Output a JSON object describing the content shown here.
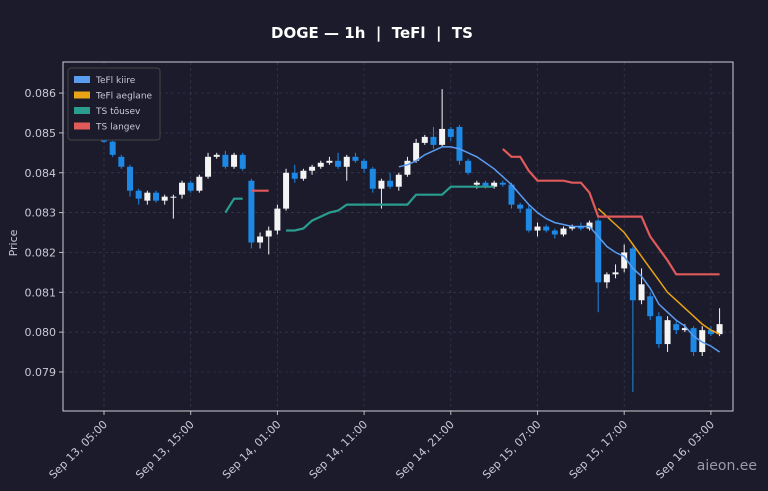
{
  "chart_data": {
    "type": "candlestick",
    "title": "DOGE — 1h  |  TeFl  |  TS",
    "y_label": "Price",
    "watermark": "aieon.ee",
    "categories": [
      "Sep 13, 05:00",
      null,
      null,
      null,
      null,
      null,
      null,
      null,
      null,
      null,
      "Sep 13, 15:00",
      null,
      null,
      null,
      null,
      null,
      null,
      null,
      null,
      null,
      "Sep 14, 01:00",
      null,
      null,
      null,
      null,
      null,
      null,
      null,
      null,
      null,
      "Sep 14, 11:00",
      null,
      null,
      null,
      null,
      null,
      null,
      null,
      null,
      null,
      "Sep 14, 21:00",
      null,
      null,
      null,
      null,
      null,
      null,
      null,
      null,
      null,
      "Sep 15, 07:00",
      null,
      null,
      null,
      null,
      null,
      null,
      null,
      null,
      null,
      "Sep 15, 17:00",
      null,
      null,
      null,
      null,
      null,
      null,
      null,
      null,
      null,
      "Sep 16, 03:00",
      null
    ],
    "open": [
      0.0849,
      0.08478,
      0.0844,
      0.08415,
      0.08355,
      0.0833,
      0.0835,
      0.0833,
      0.0834,
      0.08345,
      0.08375,
      0.08355,
      0.0839,
      0.0844,
      0.08445,
      0.08415,
      0.08445,
      0.0838,
      0.08225,
      0.0824,
      0.08255,
      0.0831,
      0.084,
      0.08385,
      0.08405,
      0.08415,
      0.08425,
      0.0843,
      0.08415,
      0.0844,
      0.0843,
      0.0841,
      0.0836,
      0.0838,
      0.08365,
      0.08395,
      0.0843,
      0.08475,
      0.0849,
      0.0847,
      0.0851,
      0.08515,
      0.0843,
      0.0837,
      0.08375,
      0.08365,
      0.08375,
      0.0837,
      0.0832,
      0.0831,
      0.08255,
      0.08265,
      0.08255,
      0.08245,
      0.0826,
      0.08265,
      0.0826,
      0.0828,
      0.08125,
      0.08145,
      0.0816,
      0.0821,
      0.0808,
      0.0809,
      0.0804,
      0.0797,
      0.0802,
      0.08005,
      0.0801,
      0.0795,
      0.08005,
      0.07995
    ],
    "high": [
      0.08495,
      0.0848,
      0.08445,
      0.0842,
      0.0836,
      0.08355,
      0.08355,
      0.08345,
      0.08345,
      0.0838,
      0.0838,
      0.08395,
      0.0845,
      0.0845,
      0.08455,
      0.0845,
      0.0845,
      0.08385,
      0.0825,
      0.08265,
      0.0832,
      0.0841,
      0.0842,
      0.0841,
      0.0842,
      0.0843,
      0.0844,
      0.0845,
      0.08445,
      0.0845,
      0.08435,
      0.08415,
      0.08385,
      0.084,
      0.084,
      0.0844,
      0.08485,
      0.08495,
      0.08515,
      0.0861,
      0.08515,
      0.0852,
      0.08435,
      0.0838,
      0.0838,
      0.0838,
      0.0838,
      0.08375,
      0.08325,
      0.0832,
      0.08275,
      0.0827,
      0.0826,
      0.08265,
      0.0827,
      0.08275,
      0.0828,
      0.08285,
      0.0815,
      0.0817,
      0.0822,
      0.08215,
      0.0816,
      0.081,
      0.0805,
      0.0804,
      0.0803,
      0.0802,
      0.08015,
      0.08015,
      0.08015,
      0.0806
    ],
    "low": [
      0.08475,
      0.0844,
      0.0841,
      0.0834,
      0.0832,
      0.0832,
      0.08325,
      0.0832,
      0.08285,
      0.08335,
      0.0835,
      0.0835,
      0.08385,
      0.08435,
      0.0841,
      0.0841,
      0.08405,
      0.0821,
      0.0821,
      0.08195,
      0.08245,
      0.08305,
      0.08375,
      0.0838,
      0.08395,
      0.0841,
      0.0842,
      0.0841,
      0.0838,
      0.08425,
      0.084,
      0.0835,
      0.0831,
      0.0836,
      0.08355,
      0.0839,
      0.08425,
      0.0847,
      0.0846,
      0.08465,
      0.0848,
      0.0842,
      0.08395,
      0.0836,
      0.0836,
      0.0836,
      0.08365,
      0.0831,
      0.083,
      0.0825,
      0.0824,
      0.0825,
      0.08235,
      0.0824,
      0.08255,
      0.08255,
      0.08255,
      0.0805,
      0.0811,
      0.08135,
      0.0815,
      0.0785,
      0.0807,
      0.0803,
      0.0796,
      0.0795,
      0.07995,
      0.08,
      0.0794,
      0.0794,
      0.0799,
      0.0799
    ],
    "close": [
      0.08478,
      0.08445,
      0.08415,
      0.08355,
      0.08335,
      0.0835,
      0.0833,
      0.0834,
      0.0834,
      0.08375,
      0.08355,
      0.0839,
      0.0844,
      0.08445,
      0.08415,
      0.08445,
      0.0841,
      0.08225,
      0.0824,
      0.08255,
      0.0831,
      0.084,
      0.08385,
      0.08405,
      0.08415,
      0.08425,
      0.0843,
      0.08415,
      0.0844,
      0.0843,
      0.0841,
      0.0836,
      0.0838,
      0.08365,
      0.08395,
      0.0843,
      0.08475,
      0.0849,
      0.0847,
      0.0851,
      0.0849,
      0.0843,
      0.084,
      0.08375,
      0.08365,
      0.08375,
      0.0837,
      0.0832,
      0.0831,
      0.08255,
      0.08265,
      0.08255,
      0.08245,
      0.0826,
      0.08265,
      0.0826,
      0.08275,
      0.08125,
      0.08145,
      0.0815,
      0.082,
      0.0808,
      0.0812,
      0.0804,
      0.0797,
      0.0803,
      0.08005,
      0.0801,
      0.0795,
      0.08005,
      0.07995,
      0.0802
    ],
    "up_color": "#f4f4f4",
    "down_color": "#1e88e5",
    "series": [
      {
        "name": "TeFl kiire",
        "color": "#5a9cf0",
        "values": [
          null,
          null,
          null,
          null,
          null,
          null,
          null,
          null,
          null,
          null,
          null,
          null,
          null,
          null,
          null,
          null,
          null,
          null,
          null,
          null,
          null,
          null,
          null,
          null,
          null,
          null,
          null,
          null,
          null,
          null,
          null,
          null,
          null,
          null,
          0.08415,
          0.0842,
          0.0843,
          0.08445,
          0.08455,
          0.08465,
          0.08465,
          0.0846,
          0.0845,
          0.0844,
          0.08425,
          0.0841,
          0.0839,
          0.0837,
          0.08345,
          0.0832,
          0.083,
          0.08285,
          0.08275,
          0.0827,
          0.08265,
          0.08265,
          0.08265,
          0.0824,
          0.08215,
          0.082,
          0.0819,
          0.0816,
          0.0814,
          0.0811,
          0.0807,
          0.0805,
          0.0803,
          0.08015,
          0.0799,
          0.07975,
          0.07965,
          0.0795
        ]
      },
      {
        "name": "TeFl aeglane",
        "color": "#e8a317",
        "values": [
          null,
          null,
          null,
          null,
          null,
          null,
          null,
          null,
          null,
          null,
          null,
          null,
          null,
          null,
          null,
          null,
          null,
          null,
          null,
          null,
          null,
          null,
          null,
          null,
          null,
          null,
          null,
          null,
          null,
          null,
          null,
          null,
          null,
          null,
          null,
          null,
          null,
          null,
          null,
          null,
          null,
          null,
          null,
          null,
          null,
          null,
          null,
          null,
          null,
          null,
          null,
          null,
          null,
          null,
          null,
          null,
          null,
          0.0831,
          0.0829,
          0.0827,
          0.0825,
          0.0822,
          0.0819,
          0.0816,
          0.0813,
          0.081,
          0.0808,
          0.0806,
          0.0804,
          0.0802,
          0.08005,
          0.07995
        ]
      },
      {
        "name": "TS tõusev",
        "color": "#2a9d8f",
        "values": [
          null,
          null,
          null,
          null,
          null,
          null,
          null,
          null,
          null,
          null,
          null,
          null,
          null,
          null,
          0.083,
          0.08335,
          0.08335,
          null,
          null,
          null,
          null,
          0.08255,
          0.08255,
          0.0826,
          0.0828,
          0.0829,
          0.083,
          0.08305,
          0.0832,
          0.0832,
          0.0832,
          0.0832,
          0.0832,
          0.0832,
          0.0832,
          0.0832,
          0.08345,
          0.08345,
          0.08345,
          0.08345,
          0.08365,
          0.08365,
          0.08365,
          0.08365,
          0.08365,
          0.08365,
          null,
          null,
          null,
          null,
          null,
          null,
          null,
          null,
          null,
          null,
          null,
          null,
          null,
          null,
          null,
          null,
          null,
          null,
          null,
          null,
          null,
          null,
          null,
          null,
          null,
          null
        ]
      },
      {
        "name": "TS langev",
        "color": "#e05a5a",
        "values": [
          null,
          null,
          null,
          null,
          null,
          null,
          null,
          null,
          null,
          null,
          null,
          null,
          null,
          null,
          null,
          null,
          null,
          0.08355,
          0.08355,
          0.08355,
          null,
          null,
          null,
          null,
          null,
          null,
          null,
          null,
          null,
          null,
          null,
          null,
          null,
          null,
          null,
          null,
          null,
          null,
          null,
          null,
          null,
          null,
          null,
          null,
          null,
          null,
          0.0846,
          0.0844,
          0.0844,
          0.08405,
          0.0838,
          0.0838,
          0.0838,
          0.0838,
          0.08375,
          0.08375,
          0.0835,
          0.0829,
          0.0829,
          0.0829,
          0.0829,
          0.0829,
          0.0829,
          0.0824,
          0.0821,
          0.0818,
          0.08145,
          0.08145,
          0.08145,
          0.08145,
          0.08145,
          0.08145
        ]
      }
    ],
    "ylim": [
      0.07802,
      0.08678
    ],
    "yticks": [
      0.079,
      {
        "value": 0.08,
        "label": "0.080"
      },
      0.081,
      0.082,
      0.083,
      0.084,
      0.085,
      0.086
    ],
    "grid": true,
    "legend": "upper left"
  }
}
